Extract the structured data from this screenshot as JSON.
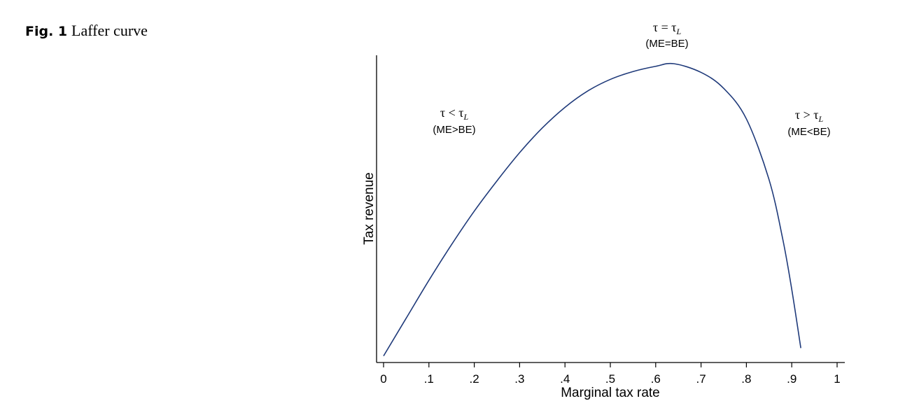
{
  "figure": {
    "label": "Fig. 1",
    "title": "Laffer curve"
  },
  "chart_data": {
    "type": "line",
    "title": "",
    "xlabel": "Marginal tax rate",
    "ylabel": "Tax revenue",
    "xlim": [
      0,
      1
    ],
    "x_ticks": [
      "0",
      ".1",
      ".2",
      ".3",
      ".4",
      ".5",
      ".6",
      ".7",
      ".8",
      ".9",
      "1"
    ],
    "y_ticks": [],
    "grid": false,
    "legend": "none",
    "line_color": "#1f3a7a",
    "series": [
      {
        "x": [
          0,
          0.05,
          0.1,
          0.15,
          0.2,
          0.25,
          0.3,
          0.35,
          0.4,
          0.45,
          0.5,
          0.55,
          0.6,
          0.64,
          0.7,
          0.75,
          0.8,
          0.85,
          0.88,
          0.9,
          0.92
        ],
        "y": [
          0.025,
          0.155,
          0.285,
          0.408,
          0.523,
          0.627,
          0.724,
          0.809,
          0.88,
          0.936,
          0.976,
          1.003,
          1.021,
          1.03,
          1.0,
          0.945,
          0.84,
          0.631,
          0.428,
          0.254,
          0.052
        ]
      }
    ],
    "annotations": [
      {
        "id": "left",
        "tau": "τ",
        "rel": " < ",
        "sub": "L",
        "note": "(ME>BE)"
      },
      {
        "id": "middle",
        "tau": "τ",
        "rel": " = ",
        "sub": "L",
        "note": "(ME=BE)"
      },
      {
        "id": "right",
        "tau": "τ",
        "rel": " > ",
        "sub": "L",
        "note": "(ME<BE)"
      }
    ]
  }
}
